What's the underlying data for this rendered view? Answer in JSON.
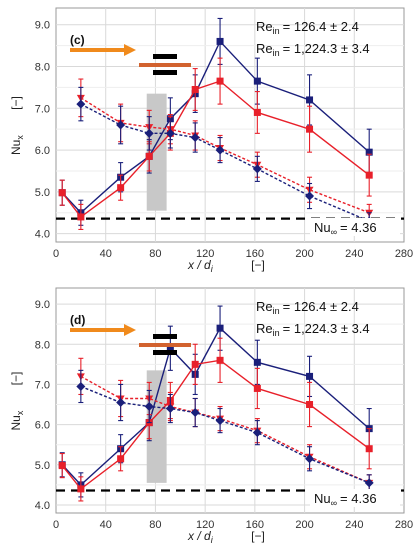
{
  "colors": {
    "blue": "#1a1f7a",
    "red": "#e8202a",
    "gray_bar": "#c8c8c8",
    "arrow": "#f08a1c",
    "plate_orange": "#d2622e",
    "plate_black": "#000000",
    "grid": "#d9d9d9",
    "frame": "#999999"
  },
  "chart_data": [
    {
      "type": "line",
      "panel": "(c)",
      "xlabel_main": "x / d",
      "xlabel_sub": "i",
      "xlabel_unit": "[−]",
      "ylabel_main": "Nu",
      "ylabel_sub": "x",
      "ylabel_unit": "[−]",
      "xlim": [
        0,
        280
      ],
      "ylim": [
        3.8,
        9.4
      ],
      "xticks": [
        0,
        40,
        80,
        120,
        160,
        200,
        240,
        280
      ],
      "yticks": [
        4.0,
        5.0,
        6.0,
        7.0,
        8.0,
        9.0
      ],
      "ytick_labels": [
        "4.0",
        "5.0",
        "6.0",
        "7.0",
        "8.0",
        "9.0"
      ],
      "grid": true,
      "legend_lines": [
        {
          "label_main": "Re",
          "label_sub": "in",
          "value": "= 126.4 ± 2.4"
        },
        {
          "label_main": "Re",
          "label_sub": "in",
          "value": "= 1,224.3 ± 3.4"
        }
      ],
      "reference": {
        "label_main": "Nu",
        "label_sub": "∞",
        "value": "= 4.36",
        "y": 4.36
      },
      "shaded_band": {
        "x0": 73,
        "x1": 89,
        "y0": 4.55,
        "y1": 7.35
      },
      "series": [
        {
          "style": "blue-solid-square",
          "x": [
            5,
            20,
            52,
            75,
            92,
            112,
            132,
            162,
            204,
            252
          ],
          "y": [
            4.98,
            4.5,
            5.35,
            5.85,
            6.75,
            7.35,
            8.6,
            7.65,
            7.2,
            5.95
          ],
          "err": [
            0.3,
            0.3,
            0.35,
            0.4,
            0.5,
            0.45,
            0.55,
            0.55,
            0.6,
            0.55
          ]
        },
        {
          "style": "red-solid-square",
          "x": [
            5,
            20,
            52,
            75,
            92,
            112,
            132,
            162,
            204,
            252
          ],
          "y": [
            4.98,
            4.4,
            5.1,
            5.85,
            6.4,
            7.45,
            7.65,
            6.9,
            6.5,
            5.4
          ],
          "err": [
            0.3,
            0.3,
            0.3,
            0.35,
            0.4,
            0.5,
            0.55,
            0.5,
            0.55,
            0.5
          ]
        },
        {
          "style": "red-dotted-triangle",
          "x": [
            20,
            52,
            75,
            92,
            112,
            132,
            162,
            204,
            252
          ],
          "y": [
            7.25,
            6.65,
            6.55,
            6.5,
            6.35,
            6.05,
            5.65,
            5.05,
            4.5
          ],
          "err": [
            0.45,
            0.45,
            0.4,
            0.35,
            0.35,
            0.3,
            0.3,
            0.3,
            0.2
          ]
        },
        {
          "style": "blue-dotted-diamond",
          "x": [
            20,
            52,
            75,
            92,
            112,
            132,
            162,
            204,
            252
          ],
          "y": [
            7.1,
            6.6,
            6.4,
            6.4,
            6.3,
            6.0,
            5.55,
            4.9,
            4.3
          ],
          "err": [
            0.4,
            0.45,
            0.4,
            0.35,
            0.35,
            0.3,
            0.3,
            0.3,
            0.2
          ]
        }
      ]
    },
    {
      "type": "line",
      "panel": "(d)",
      "xlabel_main": "x / d",
      "xlabel_sub": "i",
      "xlabel_unit": "[−]",
      "ylabel_main": "Nu",
      "ylabel_sub": "x",
      "ylabel_unit": "[−]",
      "xlim": [
        0,
        280
      ],
      "ylim": [
        3.8,
        9.4
      ],
      "xticks": [
        0,
        40,
        80,
        120,
        160,
        200,
        240,
        280
      ],
      "yticks": [
        4.0,
        5.0,
        6.0,
        7.0,
        8.0,
        9.0
      ],
      "ytick_labels": [
        "4.0",
        "5.0",
        "6.0",
        "7.0",
        "8.0",
        "9.0"
      ],
      "grid": true,
      "legend_lines": [
        {
          "label_main": "Re",
          "label_sub": "in",
          "value": "= 126.4 ± 2.4"
        },
        {
          "label_main": "Re",
          "label_sub": "in",
          "value": "= 1,224.3 ± 3.4"
        }
      ],
      "reference": {
        "label_main": "Nu",
        "label_sub": "∞",
        "value": "= 4.36",
        "y": 4.36
      },
      "shaded_band": {
        "x0": 73,
        "x1": 89,
        "y0": 4.55,
        "y1": 7.35
      },
      "series": [
        {
          "style": "blue-solid-square",
          "x": [
            5,
            20,
            52,
            75,
            92,
            112,
            132,
            162,
            204,
            252
          ],
          "y": [
            5.0,
            4.5,
            5.4,
            6.05,
            7.9,
            7.25,
            8.4,
            7.55,
            7.2,
            5.9
          ],
          "err": [
            0.3,
            0.3,
            0.35,
            0.45,
            0.55,
            0.5,
            0.55,
            0.55,
            0.5,
            0.5
          ]
        },
        {
          "style": "red-solid-square",
          "x": [
            5,
            20,
            52,
            75,
            92,
            112,
            132,
            162,
            204,
            252
          ],
          "y": [
            4.98,
            4.4,
            5.15,
            6.05,
            6.6,
            7.5,
            7.6,
            6.9,
            6.5,
            5.4
          ],
          "err": [
            0.3,
            0.3,
            0.3,
            0.4,
            0.45,
            0.5,
            0.55,
            0.5,
            0.55,
            0.5
          ]
        },
        {
          "style": "red-dotted-triangle",
          "x": [
            20,
            52,
            75,
            92,
            112,
            132,
            162,
            204,
            252
          ],
          "y": [
            7.2,
            6.65,
            6.65,
            6.45,
            6.3,
            6.15,
            5.85,
            5.2,
            4.55
          ],
          "err": [
            0.45,
            0.45,
            0.4,
            0.35,
            0.35,
            0.3,
            0.3,
            0.3,
            0.2
          ]
        },
        {
          "style": "blue-dotted-diamond",
          "x": [
            20,
            52,
            75,
            92,
            112,
            132,
            162,
            204,
            252
          ],
          "y": [
            6.95,
            6.55,
            6.45,
            6.4,
            6.3,
            6.1,
            5.8,
            5.15,
            4.55
          ],
          "err": [
            0.4,
            0.45,
            0.4,
            0.35,
            0.35,
            0.3,
            0.3,
            0.3,
            0.2
          ]
        }
      ]
    }
  ]
}
